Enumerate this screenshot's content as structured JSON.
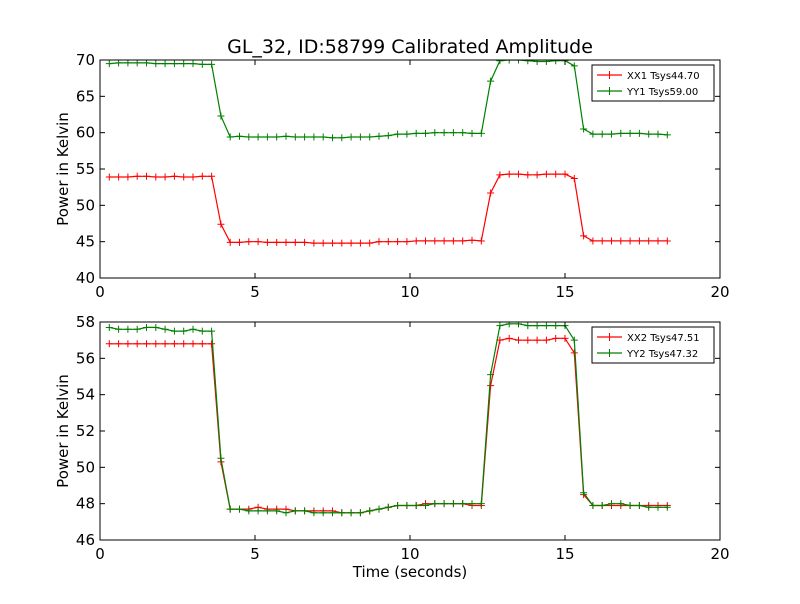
{
  "figure_title": "GL_32, ID:58799 Calibrated Amplitude",
  "chart_data": [
    {
      "type": "line",
      "title": "",
      "xlabel": "",
      "ylabel": "Power in Kelvin",
      "xlim": [
        0,
        20
      ],
      "ylim": [
        40,
        70
      ],
      "xticks": [
        "0",
        "5",
        "10",
        "15",
        "20"
      ],
      "yticks": [
        "40",
        "45",
        "50",
        "55",
        "60",
        "65",
        "70"
      ],
      "xtick_values": [
        0,
        5,
        10,
        15,
        20
      ],
      "ytick_values": [
        40,
        45,
        50,
        55,
        60,
        65,
        70
      ],
      "grid": false,
      "legend_position": "top-right",
      "x": [
        0.3,
        0.6,
        0.9,
        1.2,
        1.5,
        1.8,
        2.1,
        2.4,
        2.7,
        3.0,
        3.3,
        3.6,
        3.9,
        4.2,
        4.5,
        4.8,
        5.1,
        5.4,
        5.7,
        6.0,
        6.3,
        6.6,
        6.9,
        7.2,
        7.5,
        7.8,
        8.1,
        8.4,
        8.7,
        9.0,
        9.3,
        9.6,
        9.9,
        10.2,
        10.5,
        10.8,
        11.1,
        11.4,
        11.7,
        12.0,
        12.3,
        12.6,
        12.9,
        13.2,
        13.5,
        13.8,
        14.1,
        14.4,
        14.7,
        15.0,
        15.3,
        15.6,
        15.9,
        16.2,
        16.5,
        16.8,
        17.1,
        17.4,
        17.7,
        18.0,
        18.3
      ],
      "series": [
        {
          "name": "XX1 Tsys44.70",
          "color": "#ff0000",
          "values": [
            53.9,
            53.9,
            53.9,
            54.0,
            54.0,
            53.9,
            53.9,
            54.0,
            53.9,
            53.9,
            54.0,
            54.0,
            47.4,
            44.9,
            44.9,
            45.0,
            45.0,
            44.9,
            44.9,
            44.9,
            44.9,
            44.9,
            44.8,
            44.8,
            44.8,
            44.8,
            44.8,
            44.8,
            44.8,
            45.0,
            45.0,
            45.0,
            45.0,
            45.1,
            45.1,
            45.1,
            45.1,
            45.1,
            45.1,
            45.2,
            45.1,
            51.7,
            54.2,
            54.3,
            54.3,
            54.2,
            54.2,
            54.3,
            54.3,
            54.3,
            53.7,
            45.8,
            45.1,
            45.1,
            45.1,
            45.1,
            45.1,
            45.1,
            45.1,
            45.1,
            45.1
          ]
        },
        {
          "name": "YY1 Tsys59.00",
          "color": "#008000",
          "values": [
            69.5,
            69.6,
            69.6,
            69.6,
            69.6,
            69.5,
            69.5,
            69.5,
            69.5,
            69.5,
            69.4,
            69.4,
            62.3,
            59.4,
            59.5,
            59.4,
            59.4,
            59.4,
            59.4,
            59.5,
            59.4,
            59.4,
            59.4,
            59.4,
            59.3,
            59.3,
            59.4,
            59.4,
            59.4,
            59.5,
            59.6,
            59.8,
            59.8,
            59.9,
            59.9,
            60.0,
            60.0,
            60.0,
            60.0,
            59.9,
            59.9,
            67.1,
            69.9,
            70.0,
            70.0,
            69.9,
            69.8,
            69.8,
            69.9,
            69.9,
            69.2,
            60.5,
            59.8,
            59.8,
            59.8,
            59.9,
            59.9,
            59.9,
            59.8,
            59.8,
            59.7
          ]
        }
      ]
    },
    {
      "type": "line",
      "title": "",
      "xlabel": "Time (seconds)",
      "ylabel": "Power in Kelvin",
      "xlim": [
        0,
        20
      ],
      "ylim": [
        46,
        58
      ],
      "xticks": [
        "0",
        "5",
        "10",
        "15",
        "20"
      ],
      "yticks": [
        "46",
        "48",
        "50",
        "52",
        "54",
        "56",
        "58"
      ],
      "xtick_values": [
        0,
        5,
        10,
        15,
        20
      ],
      "ytick_values": [
        46,
        48,
        50,
        52,
        54,
        56,
        58
      ],
      "grid": false,
      "legend_position": "top-right",
      "x": [
        0.3,
        0.6,
        0.9,
        1.2,
        1.5,
        1.8,
        2.1,
        2.4,
        2.7,
        3.0,
        3.3,
        3.6,
        3.9,
        4.2,
        4.5,
        4.8,
        5.1,
        5.4,
        5.7,
        6.0,
        6.3,
        6.6,
        6.9,
        7.2,
        7.5,
        7.8,
        8.1,
        8.4,
        8.7,
        9.0,
        9.3,
        9.6,
        9.9,
        10.2,
        10.5,
        10.8,
        11.1,
        11.4,
        11.7,
        12.0,
        12.3,
        12.6,
        12.9,
        13.2,
        13.5,
        13.8,
        14.1,
        14.4,
        14.7,
        15.0,
        15.3,
        15.6,
        15.9,
        16.2,
        16.5,
        16.8,
        17.1,
        17.4,
        17.7,
        18.0,
        18.3
      ],
      "series": [
        {
          "name": "XX2 Tsys47.51",
          "color": "#ff0000",
          "values": [
            56.8,
            56.8,
            56.8,
            56.8,
            56.8,
            56.8,
            56.8,
            56.8,
            56.8,
            56.8,
            56.8,
            56.8,
            50.3,
            47.7,
            47.7,
            47.7,
            47.8,
            47.7,
            47.7,
            47.7,
            47.6,
            47.6,
            47.6,
            47.6,
            47.6,
            47.5,
            47.5,
            47.5,
            47.6,
            47.7,
            47.8,
            47.9,
            47.9,
            47.9,
            48.0,
            48.0,
            48.0,
            48.0,
            48.0,
            47.9,
            47.9,
            54.5,
            57.0,
            57.1,
            57.0,
            57.0,
            57.0,
            57.0,
            57.1,
            57.1,
            56.3,
            48.5,
            47.9,
            47.9,
            47.9,
            47.9,
            47.9,
            47.9,
            47.9,
            47.9,
            47.9
          ]
        },
        {
          "name": "YY2 Tsys47.32",
          "color": "#008000",
          "values": [
            57.7,
            57.6,
            57.6,
            57.6,
            57.7,
            57.7,
            57.6,
            57.5,
            57.5,
            57.6,
            57.5,
            57.5,
            50.5,
            47.7,
            47.7,
            47.6,
            47.6,
            47.6,
            47.6,
            47.5,
            47.6,
            47.6,
            47.5,
            47.5,
            47.5,
            47.5,
            47.5,
            47.5,
            47.6,
            47.7,
            47.8,
            47.9,
            47.9,
            47.9,
            47.9,
            48.0,
            48.0,
            48.0,
            48.0,
            48.0,
            48.0,
            55.1,
            57.8,
            57.9,
            57.9,
            57.8,
            57.8,
            57.8,
            57.8,
            57.8,
            57.0,
            48.6,
            47.9,
            47.9,
            48.0,
            48.0,
            47.9,
            47.9,
            47.8,
            47.8,
            47.8
          ]
        }
      ]
    }
  ]
}
